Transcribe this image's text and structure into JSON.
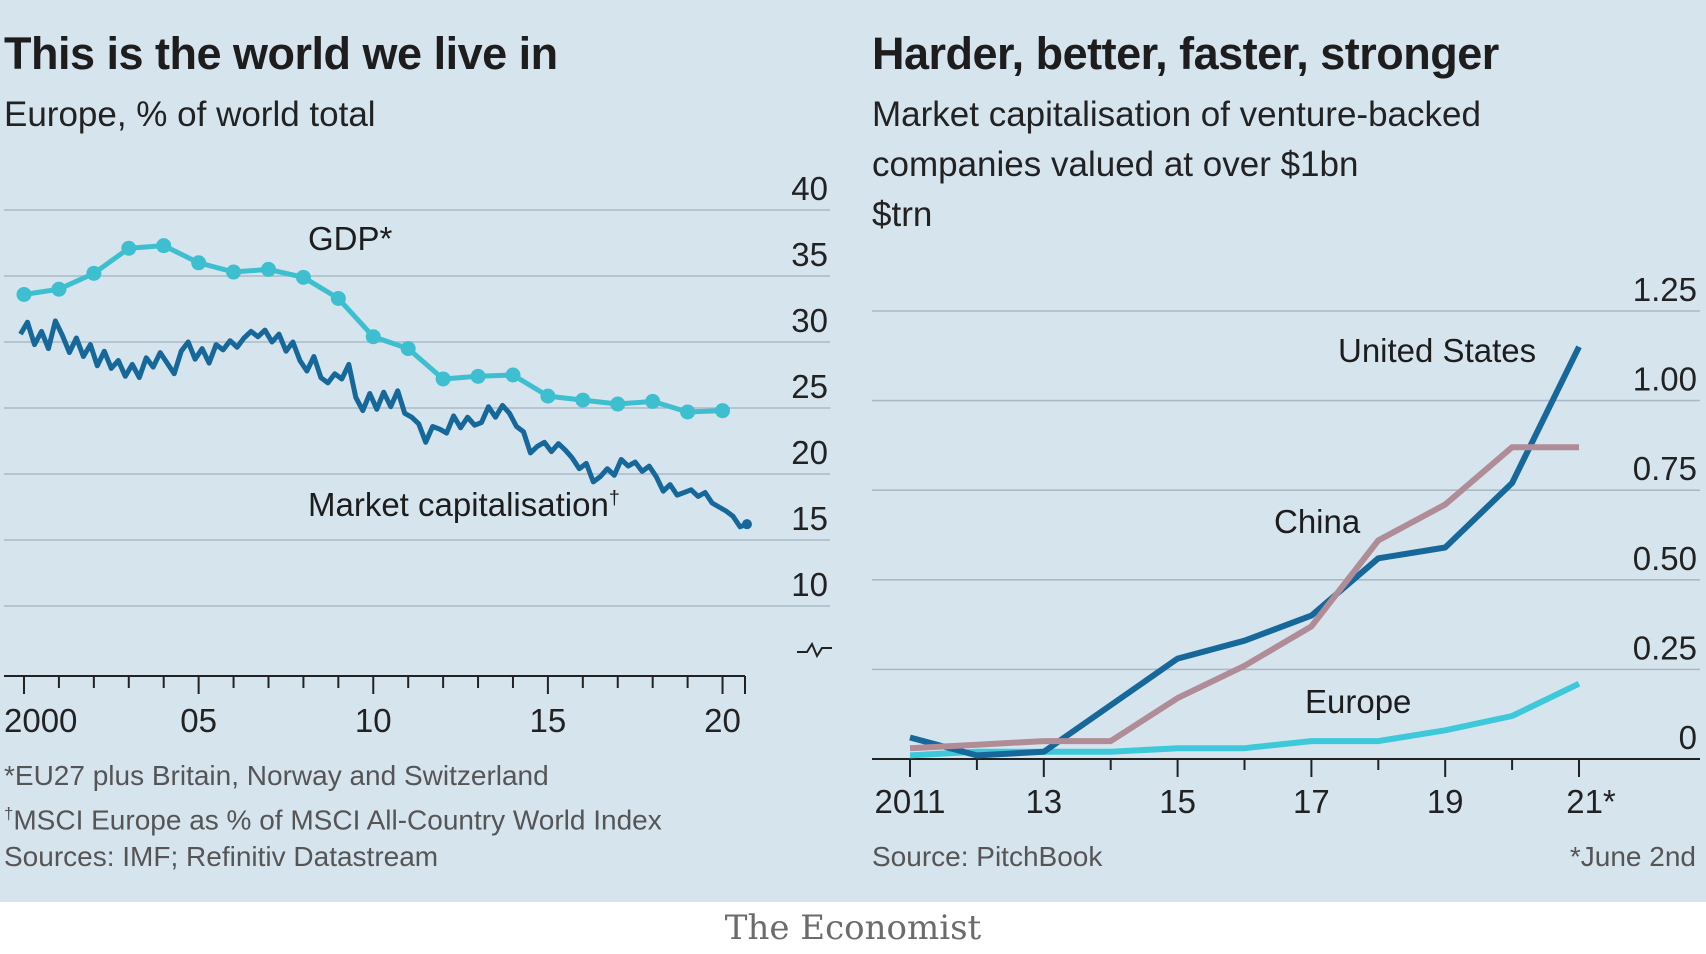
{
  "brand": "The Economist",
  "colors": {
    "background": "#d6e4ee",
    "gridline": "#a9bac6",
    "gdp": "#3ebfd0",
    "market_cap": "#17689a",
    "united_states": "#17689a",
    "china": "#b08c96",
    "europe": "#3ec9da",
    "axis": "#222222"
  },
  "chart_data": [
    {
      "type": "line",
      "title": "This is the world we live in",
      "subtitle": "Europe, % of world total",
      "ylim": [
        5,
        40
      ],
      "yticks": [
        "40",
        "35",
        "30",
        "25",
        "20",
        "15",
        "10"
      ],
      "xlim": [
        1999.8,
        2020.9
      ],
      "xticks": [
        "2000",
        "05",
        "10",
        "15",
        "20"
      ],
      "series": [
        {
          "name": "GDP*",
          "markers": true,
          "x": [
            2000,
            2001,
            2002,
            2003,
            2004,
            2005,
            2006,
            2007,
            2008,
            2009,
            2010,
            2011,
            2012,
            2013,
            2014,
            2015,
            2016,
            2017,
            2018,
            2019,
            2020
          ],
          "values": [
            33.6,
            34,
            35.2,
            37.1,
            37.3,
            36,
            35.3,
            35.5,
            34.9,
            33.3,
            30.4,
            29.5,
            27.2,
            27.4,
            27.5,
            25.9,
            25.6,
            25.3,
            25.5,
            24.7,
            24.8
          ]
        },
        {
          "name": "Market capitalisation",
          "markers": false,
          "x": [
            1999.9,
            2000.1,
            2000.3,
            2000.5,
            2000.7,
            2000.9,
            2001.1,
            2001.3,
            2001.5,
            2001.7,
            2001.9,
            2002.1,
            2002.3,
            2002.5,
            2002.7,
            2002.9,
            2003.1,
            2003.3,
            2003.5,
            2003.7,
            2003.9,
            2004.1,
            2004.3,
            2004.5,
            2004.7,
            2004.9,
            2005.1,
            2005.3,
            2005.5,
            2005.7,
            2005.9,
            2006.1,
            2006.3,
            2006.5,
            2006.7,
            2006.9,
            2007.1,
            2007.3,
            2007.5,
            2007.7,
            2007.9,
            2008.1,
            2008.3,
            2008.5,
            2008.7,
            2008.9,
            2009.1,
            2009.3,
            2009.5,
            2009.7,
            2009.9,
            2010.1,
            2010.3,
            2010.5,
            2010.7,
            2010.9,
            2011.1,
            2011.3,
            2011.5,
            2011.7,
            2011.9,
            2012.1,
            2012.3,
            2012.5,
            2012.7,
            2012.9,
            2013.1,
            2013.3,
            2013.5,
            2013.7,
            2013.9,
            2014.1,
            2014.3,
            2014.5,
            2014.7,
            2014.9,
            2015.1,
            2015.3,
            2015.5,
            2015.7,
            2015.9,
            2016.1,
            2016.3,
            2016.5,
            2016.7,
            2016.9,
            2017.1,
            2017.3,
            2017.5,
            2017.7,
            2017.9,
            2018.1,
            2018.3,
            2018.5,
            2018.7,
            2018.9,
            2019.1,
            2019.3,
            2019.5,
            2019.7,
            2019.9,
            2020.1,
            2020.3,
            2020.5,
            2020.7
          ],
          "values": [
            30.6,
            31.5,
            29.8,
            30.8,
            29.5,
            31.6,
            30.5,
            29.2,
            30.3,
            28.9,
            29.8,
            28.2,
            29.3,
            28,
            28.6,
            27.4,
            28.3,
            27.3,
            28.8,
            28.1,
            29.2,
            28.4,
            27.6,
            29.3,
            30,
            28.7,
            29.5,
            28.4,
            29.8,
            29.4,
            30.1,
            29.6,
            30.3,
            30.8,
            30.4,
            30.9,
            30,
            30.6,
            29.3,
            30,
            28.6,
            27.8,
            28.9,
            27.3,
            26.9,
            27.6,
            27.2,
            28.3,
            25.8,
            24.8,
            26.1,
            24.9,
            26.2,
            25.1,
            26.3,
            24.6,
            24.3,
            23.8,
            22.4,
            23.6,
            23.4,
            23.1,
            24.4,
            23.5,
            24.3,
            23.7,
            23.9,
            25.1,
            24.3,
            25.2,
            24.6,
            23.6,
            23.2,
            21.6,
            22.1,
            22.4,
            21.7,
            22.3,
            21.8,
            21.2,
            20.4,
            20.8,
            19.4,
            19.8,
            20.4,
            19.9,
            21.1,
            20.6,
            20.9,
            20.2,
            20.6,
            19.8,
            18.7,
            19.2,
            18.4,
            18.6,
            18.8,
            18.3,
            18.6,
            17.8,
            17.5,
            17.2,
            16.8,
            16,
            16.2
          ]
        }
      ]
    },
    {
      "type": "line",
      "title": "Harder, better, faster, stronger",
      "subtitle": "Market capitalisation of venture-backed companies valued at over $1bn",
      "ylabel": "$trn",
      "ylim": [
        0,
        1.25
      ],
      "yticks": [
        "1.25",
        "1.00",
        "0.75",
        "0.50",
        "0.25",
        "0"
      ],
      "xlim": [
        2010.7,
        2022.5
      ],
      "xticks": [
        "2011",
        "13",
        "15",
        "17",
        "19",
        "21*"
      ],
      "series": [
        {
          "name": "United States",
          "x": [
            2011,
            2012,
            2013,
            2014,
            2015,
            2016,
            2017,
            2018,
            2019,
            2020,
            2021
          ],
          "values": [
            0.06,
            0.01,
            0.02,
            0.15,
            0.28,
            0.33,
            0.4,
            0.56,
            0.59,
            0.77,
            1.15
          ]
        },
        {
          "name": "China",
          "x": [
            2011,
            2012,
            2013,
            2014,
            2015,
            2016,
            2017,
            2018,
            2019,
            2020,
            2021
          ],
          "values": [
            0.03,
            0.04,
            0.05,
            0.05,
            0.17,
            0.26,
            0.37,
            0.61,
            0.71,
            0.87,
            0.87
          ]
        },
        {
          "name": "Europe",
          "x": [
            2011,
            2012,
            2013,
            2014,
            2015,
            2016,
            2017,
            2018,
            2019,
            2020,
            2021
          ],
          "values": [
            0.01,
            0.02,
            0.02,
            0.02,
            0.03,
            0.03,
            0.05,
            0.05,
            0.08,
            0.12,
            0.21
          ]
        }
      ]
    }
  ],
  "left_notes": {
    "label_gdp": "GDP*",
    "label_mcap": "Market capitalisation",
    "label_mcap_mark": "†",
    "footnote1": "*EU27 plus Britain, Norway and Switzerland",
    "footnote2_mark": "†",
    "footnote2": "MSCI Europe as % of MSCI All-Country World Index",
    "sources": "Sources: IMF; Refinitiv Datastream"
  },
  "right_notes": {
    "subtitle_line1": "Market capitalisation of venture-backed",
    "subtitle_line2": "companies valued at over $1bn",
    "unit": "$trn",
    "label_us": "United States",
    "label_china": "China",
    "label_europe": "Europe",
    "source": "Source: PitchBook",
    "date_note": "*June 2nd"
  }
}
